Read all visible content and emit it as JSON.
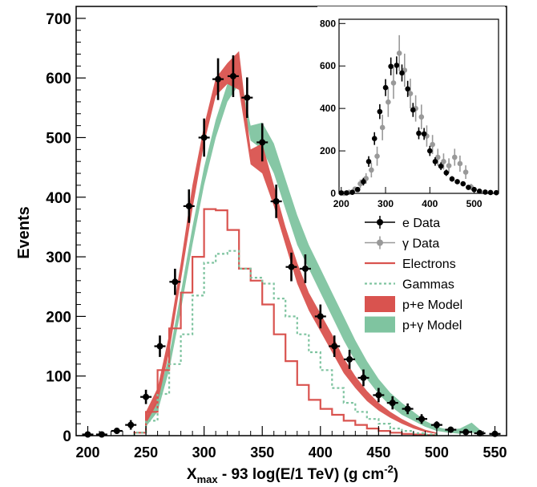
{
  "chart_data": [
    {
      "type": "line",
      "xlabel_main": "X",
      "xlabel_sub": "max",
      "xlabel_rest": " - 93 log(E/1 TeV) (g cm",
      "xlabel_sup": "-2",
      "xlabel_close": ")",
      "ylabel": "Events",
      "xlim": [
        190,
        560
      ],
      "ylim": [
        0,
        720
      ],
      "x_ticks": [
        200,
        250,
        300,
        350,
        400,
        450,
        500,
        550
      ],
      "y_ticks": [
        0,
        100,
        200,
        300,
        400,
        500,
        600,
        700
      ],
      "grid": false,
      "legend_position": "right",
      "legend": [
        {
          "label": "e Data",
          "kind": "marker",
          "color": "#000000"
        },
        {
          "label": "γ Data",
          "kind": "marker",
          "color": "#999999"
        },
        {
          "label": "Electrons",
          "kind": "line",
          "color": "#d9534f"
        },
        {
          "label": "Gammas",
          "kind": "dotted",
          "color": "#7fc4a0"
        },
        {
          "label": "p+e Model",
          "kind": "box",
          "color": "#d9534f"
        },
        {
          "label": "p+γ Model",
          "kind": "box",
          "color": "#7fc4a0"
        }
      ],
      "series": [
        {
          "name": "e Data",
          "kind": "points",
          "color": "#000000",
          "x": [
            200,
            212,
            225,
            237,
            250,
            262,
            275,
            287,
            300,
            312,
            325,
            337,
            350,
            362,
            375,
            387,
            400,
            412,
            425,
            437,
            450,
            462,
            475,
            487,
            500,
            512,
            525,
            537,
            550
          ],
          "y": [
            2,
            2,
            8,
            18,
            65,
            150,
            258,
            385,
            500,
            598,
            603,
            567,
            492,
            393,
            283,
            280,
            200,
            150,
            128,
            97,
            68,
            55,
            45,
            28,
            18,
            10,
            6,
            4,
            3
          ],
          "err": [
            3,
            3,
            5,
            8,
            12,
            18,
            22,
            28,
            32,
            35,
            35,
            34,
            32,
            28,
            24,
            24,
            20,
            18,
            16,
            14,
            12,
            11,
            9,
            8,
            6,
            5,
            4,
            3,
            2
          ]
        },
        {
          "name": "p+e Model",
          "kind": "band",
          "color": "#d9534f",
          "x": [
            250,
            260,
            270,
            280,
            290,
            300,
            310,
            320,
            330,
            340,
            350,
            360,
            370,
            380,
            390,
            400,
            410,
            420,
            430,
            440,
            450,
            460,
            470,
            480,
            490,
            500
          ],
          "low": [
            20,
            55,
            140,
            260,
            380,
            490,
            570,
            590,
            580,
            455,
            440,
            385,
            320,
            255,
            210,
            175,
            140,
            105,
            80,
            58,
            42,
            30,
            20,
            12,
            6,
            3
          ],
          "high": [
            40,
            80,
            170,
            290,
            420,
            520,
            600,
            625,
            645,
            480,
            490,
            420,
            350,
            290,
            240,
            205,
            170,
            130,
            100,
            75,
            55,
            40,
            28,
            18,
            10,
            5
          ]
        },
        {
          "name": "p+γ Model",
          "kind": "band",
          "color": "#7fc4a0",
          "x": [
            250,
            260,
            270,
            280,
            290,
            300,
            310,
            320,
            330,
            340,
            350,
            360,
            370,
            380,
            390,
            400,
            410,
            420,
            430,
            440,
            450,
            460,
            470,
            480,
            490,
            500,
            510,
            520,
            530,
            540
          ],
          "low": [
            15,
            40,
            110,
            210,
            320,
            420,
            500,
            560,
            590,
            495,
            480,
            440,
            380,
            320,
            280,
            240,
            200,
            160,
            125,
            95,
            70,
            50,
            35,
            25,
            15,
            8,
            5,
            3,
            5,
            2
          ],
          "high": [
            30,
            60,
            135,
            240,
            350,
            450,
            530,
            590,
            615,
            520,
            525,
            490,
            430,
            370,
            320,
            280,
            240,
            200,
            160,
            125,
            95,
            72,
            55,
            40,
            25,
            15,
            10,
            12,
            22,
            5
          ]
        },
        {
          "name": "Electrons",
          "kind": "step",
          "color": "#d9534f",
          "edges": [
            240,
            250,
            260,
            270,
            280,
            290,
            300,
            310,
            320,
            330,
            340,
            350,
            360,
            370,
            380,
            390,
            400,
            410,
            420,
            430,
            440,
            450,
            460,
            470,
            480,
            490,
            500
          ],
          "values": [
            5,
            40,
            110,
            180,
            240,
            300,
            380,
            378,
            345,
            280,
            260,
            220,
            170,
            125,
            85,
            60,
            45,
            35,
            25,
            18,
            12,
            8,
            5,
            3,
            2,
            1
          ]
        },
        {
          "name": "Gammas",
          "kind": "step",
          "color": "#7fc4a0",
          "edges": [
            240,
            250,
            260,
            270,
            280,
            290,
            300,
            310,
            320,
            330,
            340,
            350,
            360,
            370,
            380,
            390,
            400,
            410,
            420,
            430,
            440,
            450,
            460,
            470,
            480,
            490,
            500
          ],
          "values": [
            5,
            25,
            70,
            120,
            170,
            235,
            290,
            305,
            310,
            280,
            265,
            255,
            230,
            200,
            170,
            140,
            110,
            80,
            55,
            40,
            28,
            20,
            12,
            8,
            4,
            2
          ]
        }
      ]
    },
    {
      "type": "scatter",
      "inset": true,
      "xlim": [
        195,
        555
      ],
      "ylim": [
        0,
        820
      ],
      "x_ticks": [
        200,
        300,
        400,
        500
      ],
      "y_ticks": [
        0,
        200,
        400,
        600,
        800
      ],
      "series": [
        {
          "name": "e Data",
          "color": "#000000",
          "x": [
            200,
            212,
            225,
            237,
            250,
            262,
            275,
            287,
            300,
            312,
            325,
            337,
            350,
            362,
            375,
            387,
            400,
            412,
            425,
            437,
            450,
            462,
            475,
            487,
            500,
            512,
            525,
            537,
            550
          ],
          "y": [
            2,
            2,
            5,
            18,
            55,
            150,
            258,
            385,
            498,
            598,
            603,
            567,
            492,
            393,
            283,
            280,
            200,
            150,
            128,
            97,
            68,
            55,
            45,
            28,
            18,
            10,
            6,
            4,
            3
          ],
          "err": [
            3,
            3,
            5,
            10,
            18,
            25,
            30,
            35,
            40,
            42,
            42,
            40,
            38,
            33,
            28,
            28,
            24,
            20,
            18,
            15,
            13,
            11,
            9,
            8,
            6,
            5,
            4,
            3,
            2
          ]
        },
        {
          "name": "γ Data",
          "color": "#999999",
          "x": [
            206,
            218,
            231,
            243,
            256,
            268,
            281,
            293,
            306,
            318,
            331,
            343,
            356,
            368,
            381,
            393,
            406,
            418,
            431,
            443,
            456,
            468,
            481,
            493
          ],
          "y": [
            0,
            5,
            20,
            45,
            70,
            110,
            175,
            310,
            430,
            520,
            660,
            580,
            470,
            400,
            360,
            270,
            230,
            170,
            150,
            130,
            170,
            140,
            100,
            30
          ],
          "err": [
            3,
            5,
            12,
            20,
            25,
            35,
            45,
            60,
            70,
            75,
            85,
            78,
            70,
            62,
            58,
            50,
            45,
            40,
            38,
            35,
            40,
            38,
            32,
            15
          ]
        }
      ]
    }
  ]
}
